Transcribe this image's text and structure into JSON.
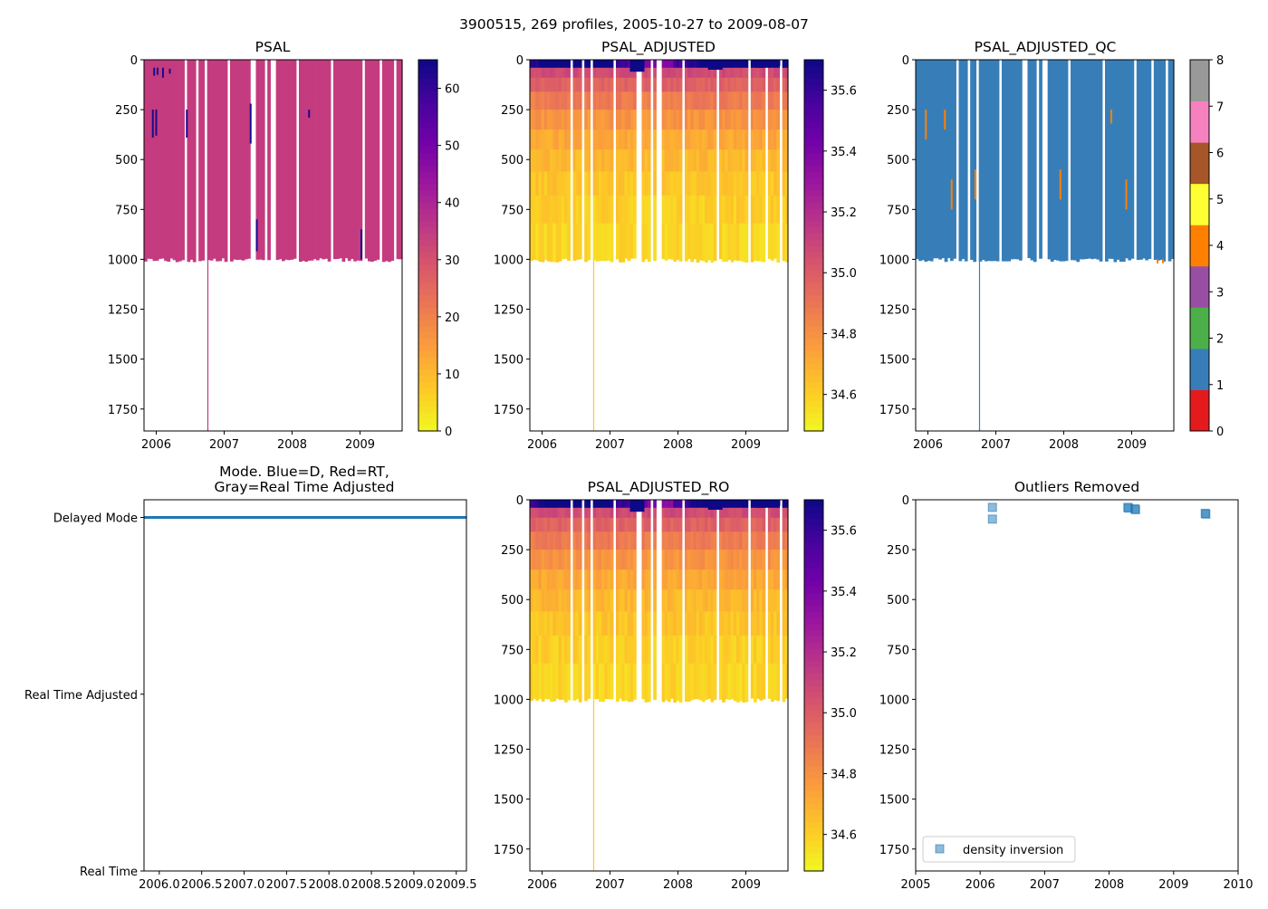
{
  "suptitle": "3900515, 269 profiles, 2005-10-27 to 2009-08-07",
  "colors": {
    "plasma": [
      "#f0f921",
      "#fdca26",
      "#fb9f3a",
      "#ed7953",
      "#d8576b",
      "#bd3786",
      "#9c179e",
      "#7201a8",
      "#46039f",
      "#0d0887"
    ],
    "qc": [
      "#e41a1c",
      "#377eb8",
      "#4daf4a",
      "#984ea3",
      "#ff7f00",
      "#ffff33",
      "#a65628",
      "#f781bf",
      "#999999"
    ],
    "psal_fill": "#c43b7f",
    "qc_fill": "#377eb8",
    "mode_line": "#1f77b4",
    "outlier_marker": "#1f77b4"
  },
  "chart_data": [
    {
      "id": "psal",
      "type": "heatmap",
      "title": "PSAL",
      "xlim": [
        2005.82,
        2009.62
      ],
      "ylim": [
        1860,
        0
      ],
      "xticks": [
        2006,
        2007,
        2008,
        2009
      ],
      "xtick_labels": [
        "2006",
        "2007",
        "2008",
        "2009"
      ],
      "yticks": [
        0,
        250,
        500,
        750,
        1000,
        1250,
        1500,
        1750
      ],
      "ytick_labels": [
        "0",
        "250",
        "500",
        "750",
        "1000",
        "1250",
        "1500",
        "1750"
      ],
      "deep_profile_date": 2006.76,
      "colorbar": {
        "cmap": "plasma_r",
        "range": [
          0,
          65
        ],
        "ticks": [
          0,
          10,
          20,
          30,
          40,
          50,
          60
        ],
        "tick_labels": [
          "0",
          "10",
          "20",
          "30",
          "40",
          "50",
          "60"
        ]
      }
    },
    {
      "id": "psal_adjusted",
      "type": "heatmap",
      "title": "PSAL_ADJUSTED",
      "xlim": [
        2005.82,
        2009.62
      ],
      "ylim": [
        1860,
        0
      ],
      "xticks": [
        2006,
        2007,
        2008,
        2009
      ],
      "xtick_labels": [
        "2006",
        "2007",
        "2008",
        "2009"
      ],
      "yticks": [
        0,
        250,
        500,
        750,
        1000,
        1250,
        1500,
        1750
      ],
      "ytick_labels": [
        "0",
        "250",
        "500",
        "750",
        "1000",
        "1250",
        "1500",
        "1750"
      ],
      "deep_profile_date": 2006.76,
      "colorbar": {
        "cmap": "plasma_r",
        "range": [
          34.48,
          35.7
        ],
        "ticks": [
          34.6,
          34.8,
          35.0,
          35.2,
          35.4,
          35.6
        ],
        "tick_labels": [
          "34.6",
          "34.8",
          "35.0",
          "35.2",
          "35.4",
          "35.6"
        ]
      }
    },
    {
      "id": "psal_adjusted_qc",
      "type": "heatmap",
      "title": "PSAL_ADJUSTED_QC",
      "xlim": [
        2005.82,
        2009.62
      ],
      "ylim": [
        1860,
        0
      ],
      "xticks": [
        2006,
        2007,
        2008,
        2009
      ],
      "xtick_labels": [
        "2006",
        "2007",
        "2008",
        "2009"
      ],
      "yticks": [
        0,
        250,
        500,
        750,
        1000,
        1250,
        1500,
        1750
      ],
      "ytick_labels": [
        "0",
        "250",
        "500",
        "750",
        "1000",
        "1250",
        "1500",
        "1750"
      ],
      "deep_profile_date": 2006.76,
      "colorbar": {
        "cmap": "qc_categorical",
        "range": [
          0,
          8
        ],
        "ticks": [
          0,
          1,
          2,
          3,
          4,
          5,
          6,
          7,
          8
        ],
        "tick_labels": [
          "0",
          "1",
          "2",
          "3",
          "4",
          "5",
          "6",
          "7",
          "8"
        ]
      }
    },
    {
      "id": "mode",
      "type": "line",
      "title_line1": "Mode. Blue=D, Red=RT,",
      "title_line2": "Gray=Real Time Adjusted",
      "xlim": [
        2005.82,
        2009.62
      ],
      "xticks": [
        2006.0,
        2006.5,
        2007.0,
        2007.5,
        2008.0,
        2008.5,
        2009.0,
        2009.5
      ],
      "xtick_labels": [
        "2006.0",
        "2006.5",
        "2007.0",
        "2007.5",
        "2008.0",
        "2008.5",
        "2009.0",
        "2009.5"
      ],
      "yticks": [
        0,
        1,
        2
      ],
      "ytick_labels": [
        "Real Time",
        "Real Time Adjusted",
        "Delayed Mode"
      ],
      "ylim": [
        0,
        2.1
      ],
      "series": [
        {
          "name": "mode",
          "x": [
            2005.82,
            2009.62
          ],
          "y": [
            2,
            2
          ]
        }
      ]
    },
    {
      "id": "psal_adjusted_ro",
      "type": "heatmap",
      "title": "PSAL_ADJUSTED_RO",
      "xlim": [
        2005.82,
        2009.62
      ],
      "ylim": [
        1860,
        0
      ],
      "xticks": [
        2006,
        2007,
        2008,
        2009
      ],
      "xtick_labels": [
        "2006",
        "2007",
        "2008",
        "2009"
      ],
      "yticks": [
        0,
        250,
        500,
        750,
        1000,
        1250,
        1500,
        1750
      ],
      "ytick_labels": [
        "0",
        "250",
        "500",
        "750",
        "1000",
        "1250",
        "1500",
        "1750"
      ],
      "deep_profile_date": 2006.76,
      "colorbar": {
        "cmap": "plasma_r",
        "range": [
          34.48,
          35.7
        ],
        "ticks": [
          34.6,
          34.8,
          35.0,
          35.2,
          35.4,
          35.6
        ],
        "tick_labels": [
          "34.6",
          "34.8",
          "35.0",
          "35.2",
          "35.4",
          "35.6"
        ]
      }
    },
    {
      "id": "outliers",
      "type": "scatter",
      "title": "Outliers Removed",
      "xlim": [
        2005,
        2010
      ],
      "ylim": [
        1860,
        0
      ],
      "xticks": [
        2005,
        2006,
        2007,
        2008,
        2009,
        2010
      ],
      "xtick_labels": [
        "2005",
        "2006",
        "2007",
        "2008",
        "2009",
        "2010"
      ],
      "yticks": [
        0,
        250,
        500,
        750,
        1000,
        1250,
        1500,
        1750
      ],
      "ytick_labels": [
        "0",
        "250",
        "500",
        "750",
        "1000",
        "1250",
        "1500",
        "1750"
      ],
      "legend": {
        "label": "density inversion",
        "placement": "lower-left"
      },
      "series": [
        {
          "name": "density inversion",
          "points": [
            {
              "x": 2006.19,
              "y": 38
            },
            {
              "x": 2006.19,
              "y": 97
            },
            {
              "x": 2008.29,
              "y": 38
            },
            {
              "x": 2008.3,
              "y": 42
            },
            {
              "x": 2008.4,
              "y": 45
            },
            {
              "x": 2008.41,
              "y": 50
            },
            {
              "x": 2009.49,
              "y": 68
            },
            {
              "x": 2009.5,
              "y": 72
            }
          ]
        }
      ]
    }
  ]
}
